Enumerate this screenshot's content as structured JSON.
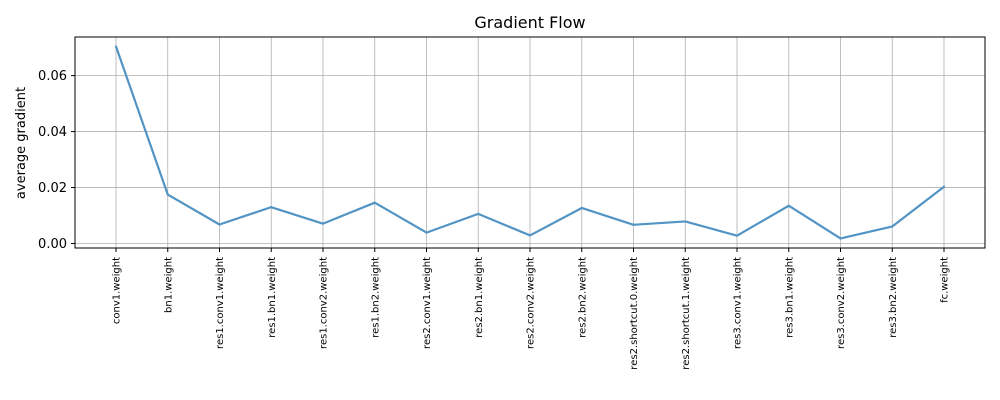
{
  "chart_data": {
    "type": "line",
    "title": "Gradient Flow",
    "xlabel": "",
    "ylabel": "average gradient",
    "categories": [
      "conv1.weight",
      "bn1.weight",
      "res1.conv1.weight",
      "res1.bn1.weight",
      "res1.conv2.weight",
      "res1.bn2.weight",
      "res2.conv1.weight",
      "res2.bn1.weight",
      "res2.conv2.weight",
      "res2.bn2.weight",
      "res2.shortcut.0.weight",
      "res2.shortcut.1.weight",
      "res3.conv1.weight",
      "res3.bn1.weight",
      "res3.conv2.weight",
      "res3.bn2.weight",
      "fc.weight"
    ],
    "series": [
      {
        "values": [
          0.0704,
          0.0175,
          0.0068,
          0.013,
          0.0071,
          0.0146,
          0.0039,
          0.0106,
          0.0029,
          0.0127,
          0.0067,
          0.0079,
          0.0028,
          0.0135,
          0.0018,
          0.0061,
          0.0203
        ]
      }
    ],
    "yticks": [
      "0.00",
      "0.02",
      "0.04",
      "0.06"
    ],
    "ylim": [
      -0.0016,
      0.0738
    ],
    "grid": true,
    "line_color": "#5294c4"
  }
}
